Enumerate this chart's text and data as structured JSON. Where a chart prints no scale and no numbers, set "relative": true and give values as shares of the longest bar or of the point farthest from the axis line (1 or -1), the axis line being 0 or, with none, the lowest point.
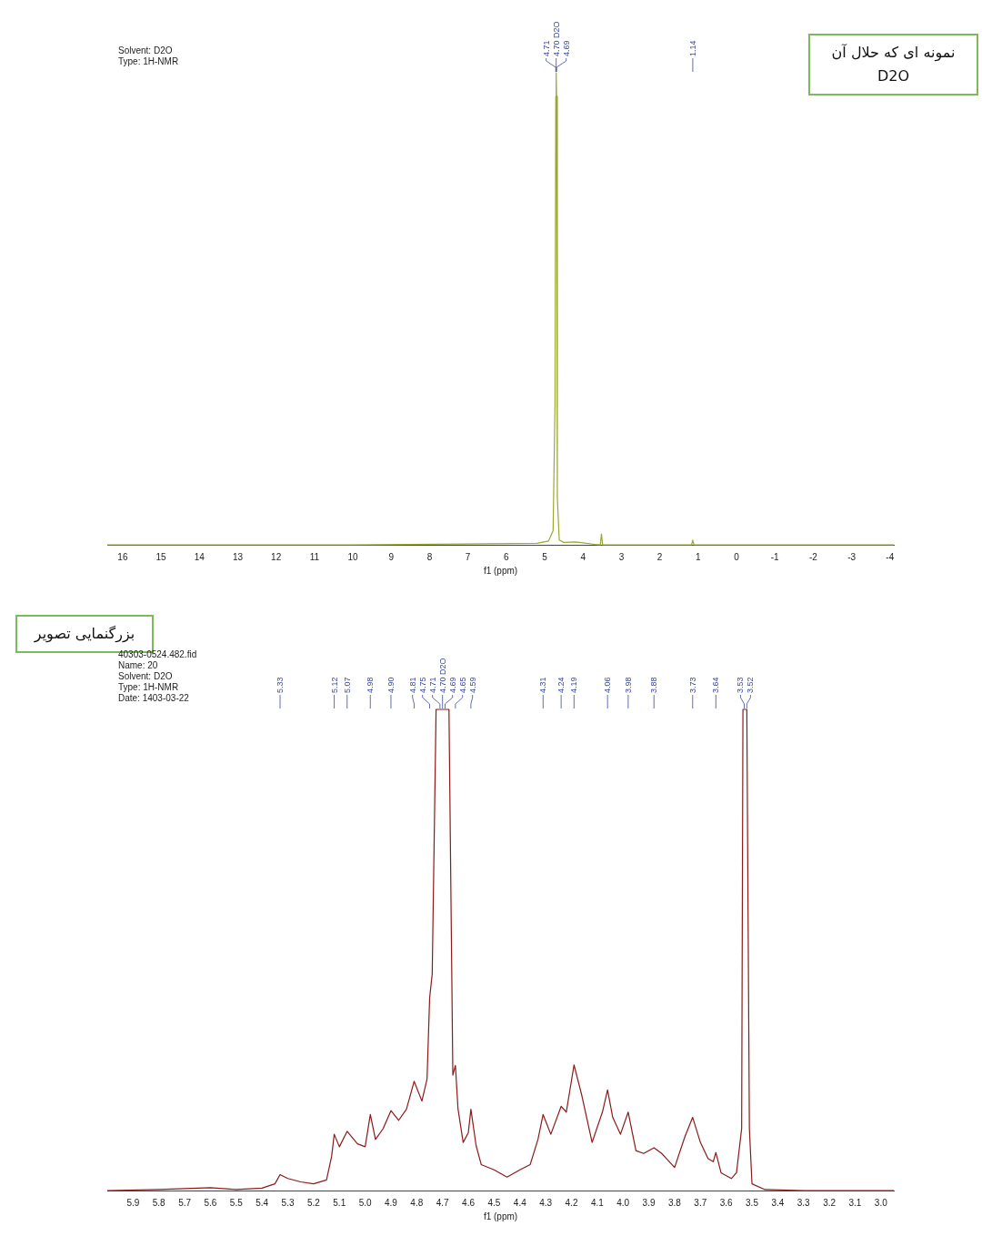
{
  "chart_data": [
    {
      "type": "line",
      "title": "نمونه ای که حلال آن\nD2O",
      "xlabel": "f1 (ppm)",
      "relative": true,
      "xlim": [
        16.4,
        -4.1
      ],
      "xticks": [
        16,
        15,
        14,
        13,
        12,
        11,
        10,
        9,
        8,
        7,
        6,
        5,
        4,
        3,
        2,
        1,
        0,
        -1,
        -2,
        -3,
        -4
      ],
      "annotations": [
        "Solvent: D2O",
        "Type: 1H-NMR",
        {
          "text": "4.71",
          "x": 4.71
        },
        {
          "text": "4.70 D2O",
          "x": 4.7
        },
        {
          "text": "4.69",
          "x": 4.69
        },
        {
          "text": "1.14",
          "x": 1.14
        }
      ],
      "series": [
        {
          "color": "#9aa832",
          "x": [
            16.4,
            10,
            5.2,
            4.9,
            4.78,
            4.73,
            4.71,
            4.7,
            4.69,
            4.67,
            4.62,
            4.5,
            4.2,
            4.0,
            3.7,
            3.55,
            3.52,
            3.49,
            1.17,
            1.14,
            1.11,
            -4.1
          ],
          "values": [
            0,
            0,
            0.003,
            0.008,
            0.03,
            0.3,
            0.95,
            1,
            0.95,
            0.1,
            0.01,
            0.005,
            0.006,
            0.004,
            0.001,
            0,
            0.023,
            0,
            0,
            0.01,
            0,
            0
          ]
        }
      ]
    },
    {
      "type": "line",
      "title": "بزرگنمایی تصویر",
      "xlabel": "f1 (ppm)",
      "relative": true,
      "xlim": [
        6.0,
        2.95
      ],
      "xticks": [
        5.9,
        5.8,
        5.7,
        5.6,
        5.5,
        5.4,
        5.3,
        5.2,
        5.1,
        {
          "value": 5.0,
          "label": "5.0"
        },
        4.9,
        4.8,
        4.7,
        4.6,
        4.5,
        4.4,
        4.3,
        4.2,
        4.1,
        {
          "value": 4.0,
          "label": "4.0"
        },
        3.9,
        3.8,
        3.7,
        3.6,
        3.5,
        3.4,
        3.3,
        3.2,
        3.1,
        {
          "value": 3.0,
          "label": "3.0"
        }
      ],
      "annotations": [
        "40303-0524.482.fid",
        "Name: 20",
        "Solvent: D2O",
        "Type: 1H-NMR",
        "Date: 1403-03-22",
        {
          "text": "5.33",
          "x": 5.33
        },
        {
          "text": "5.12",
          "x": 5.12
        },
        {
          "text": "5.07",
          "x": 5.07
        },
        {
          "text": "4.98",
          "x": 4.98
        },
        {
          "text": "4.90",
          "x": 4.9
        },
        {
          "text": "4.81",
          "x": 4.81
        },
        {
          "text": "4.75",
          "x": 4.75
        },
        {
          "text": "4.71",
          "x": 4.71
        },
        {
          "text": "4.70 D2O",
          "x": 4.7
        },
        {
          "text": "4.69",
          "x": 4.69
        },
        {
          "text": "4.65",
          "x": 4.65
        },
        {
          "text": "4.59",
          "x": 4.59
        },
        {
          "text": "4.31",
          "x": 4.31
        },
        {
          "text": "4.24",
          "x": 4.24
        },
        {
          "text": "4.19",
          "x": 4.19
        },
        {
          "text": "4.06",
          "x": 4.06
        },
        {
          "text": "3.98",
          "x": 3.98
        },
        {
          "text": "3.88",
          "x": 3.88
        },
        {
          "text": "3.73",
          "x": 3.73
        },
        {
          "text": "3.64",
          "x": 3.64
        },
        {
          "text": "3.53",
          "x": 3.53
        },
        {
          "text": "3.52",
          "x": 3.52
        }
      ],
      "series": [
        {
          "color": "#8b1a1a",
          "x": [
            6.0,
            5.8,
            5.6,
            5.5,
            5.4,
            5.35,
            5.33,
            5.3,
            5.25,
            5.2,
            5.15,
            5.13,
            5.12,
            5.1,
            5.07,
            5.03,
            5.0,
            4.98,
            4.96,
            4.93,
            4.9,
            4.87,
            4.84,
            4.81,
            4.78,
            4.76,
            4.75,
            4.74,
            4.725,
            4.71,
            4.7,
            4.69,
            4.675,
            4.66,
            4.65,
            4.64,
            4.62,
            4.6,
            4.59,
            4.57,
            4.55,
            4.5,
            4.45,
            4.4,
            4.36,
            4.33,
            4.31,
            4.28,
            4.24,
            4.22,
            4.19,
            4.16,
            4.12,
            4.08,
            4.06,
            4.04,
            4.01,
            3.98,
            3.95,
            3.92,
            3.88,
            3.85,
            3.8,
            3.76,
            3.73,
            3.7,
            3.67,
            3.65,
            3.64,
            3.62,
            3.58,
            3.56,
            3.54,
            3.535,
            3.52,
            3.51,
            3.5,
            3.45,
            3.3,
            2.95
          ],
          "values": [
            0,
            0.002,
            0.006,
            0.002,
            0.005,
            0.014,
            0.033,
            0.025,
            0.018,
            0.014,
            0.022,
            0.071,
            0.117,
            0.091,
            0.123,
            0.097,
            0.091,
            0.158,
            0.106,
            0.129,
            0.166,
            0.146,
            0.169,
            0.227,
            0.186,
            0.232,
            0.4,
            0.45,
            1,
            1,
            1,
            1,
            1,
            0.24,
            0.26,
            0.17,
            0.1,
            0.12,
            0.169,
            0.094,
            0.054,
            0.043,
            0.028,
            0.043,
            0.054,
            0.106,
            0.158,
            0.117,
            0.175,
            0.163,
            0.261,
            0.198,
            0.1,
            0.163,
            0.209,
            0.152,
            0.117,
            0.163,
            0.083,
            0.077,
            0.089,
            0.077,
            0.048,
            0.112,
            0.152,
            0.1,
            0.066,
            0.06,
            0.079,
            0.037,
            0.025,
            0.037,
            0.129,
            1,
            1,
            0.129,
            0.014,
            0.002,
            0,
            0
          ]
        }
      ]
    }
  ]
}
